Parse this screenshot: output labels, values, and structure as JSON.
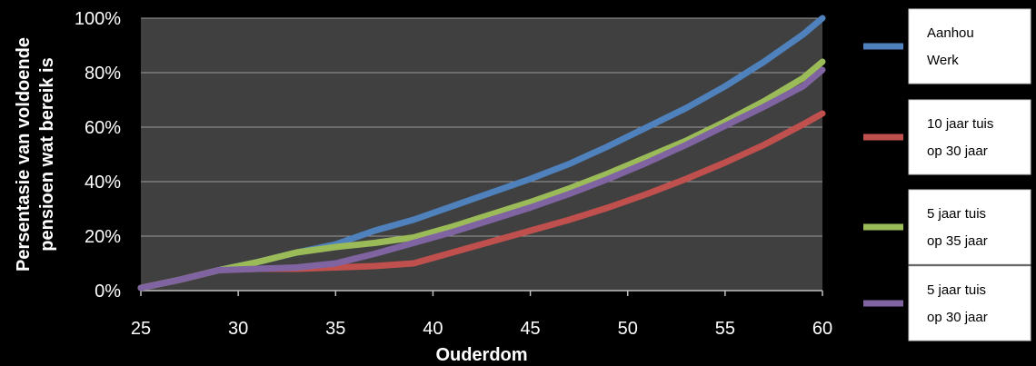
{
  "chart_data": {
    "type": "line",
    "title": "",
    "xlabel": "Ouderdom",
    "ylabel": "Persentasie van voldoende pensioen wat bereik is",
    "ylabel_lines": [
      "Persentasie van voldoende",
      "pensioen wat bereik is"
    ],
    "xlim": [
      25,
      60
    ],
    "ylim": [
      0,
      100
    ],
    "x_ticks": [
      25,
      30,
      35,
      40,
      45,
      50,
      55,
      60
    ],
    "x_tick_labels": [
      "25",
      "30",
      "35",
      "40",
      "45",
      "50",
      "55",
      "60"
    ],
    "y_ticks": [
      0,
      20,
      40,
      60,
      80,
      100
    ],
    "y_tick_labels": [
      "0%",
      "20%",
      "40%",
      "60%",
      "80%",
      "100%"
    ],
    "grid": true,
    "legend_position": "right",
    "series": [
      {
        "name": "Aanhou Werk",
        "legend_lines": [
          "Aanhou",
          "Werk"
        ],
        "color": "#4F81BD",
        "x": [
          25,
          27,
          29,
          31,
          33,
          35,
          37,
          39,
          41,
          43,
          45,
          47,
          49,
          51,
          53,
          55,
          57,
          59,
          60
        ],
        "y": [
          1,
          4,
          7.5,
          10.5,
          14,
          17,
          22,
          26,
          31,
          36,
          41,
          46.5,
          53,
          60,
          67,
          75,
          84,
          94,
          100
        ]
      },
      {
        "name": "10 jaar tuis op 30 jaar",
        "legend_lines": [
          "10 jaar tuis",
          "op 30 jaar"
        ],
        "color": "#C0504D",
        "x": [
          25,
          27,
          29,
          31,
          33,
          35,
          37,
          39,
          41,
          43,
          45,
          47,
          49,
          51,
          53,
          55,
          57,
          59,
          60
        ],
        "y": [
          1,
          4,
          7.5,
          8,
          8,
          8.5,
          9,
          10,
          14,
          18,
          22,
          26,
          30.5,
          35.5,
          41,
          47,
          53.5,
          61,
          65
        ]
      },
      {
        "name": "5 jaar tuis op 35 jaar",
        "legend_lines": [
          "5 jaar tuis",
          "op 35 jaar"
        ],
        "color": "#9BBB59",
        "x": [
          25,
          27,
          29,
          31,
          33,
          35,
          37,
          39,
          41,
          43,
          45,
          47,
          49,
          51,
          53,
          55,
          57,
          59,
          60
        ],
        "y": [
          1,
          4,
          7.5,
          10.5,
          14,
          16,
          17.5,
          19.5,
          23.5,
          28,
          32.5,
          37.5,
          43,
          49,
          55,
          62,
          69.5,
          78,
          84
        ]
      },
      {
        "name": "5 jaar tuis op 30 jaar",
        "legend_lines": [
          "5 jaar tuis",
          "op 30 jaar"
        ],
        "color": "#8064A2",
        "x": [
          25,
          27,
          29,
          31,
          33,
          35,
          37,
          39,
          41,
          43,
          45,
          47,
          49,
          51,
          53,
          55,
          57,
          59,
          60
        ],
        "y": [
          1,
          4,
          7.5,
          8,
          8.5,
          10,
          13.5,
          17.5,
          21.5,
          26,
          30.5,
          35.5,
          41,
          47,
          53.5,
          60.5,
          67.5,
          75,
          81
        ]
      }
    ]
  }
}
